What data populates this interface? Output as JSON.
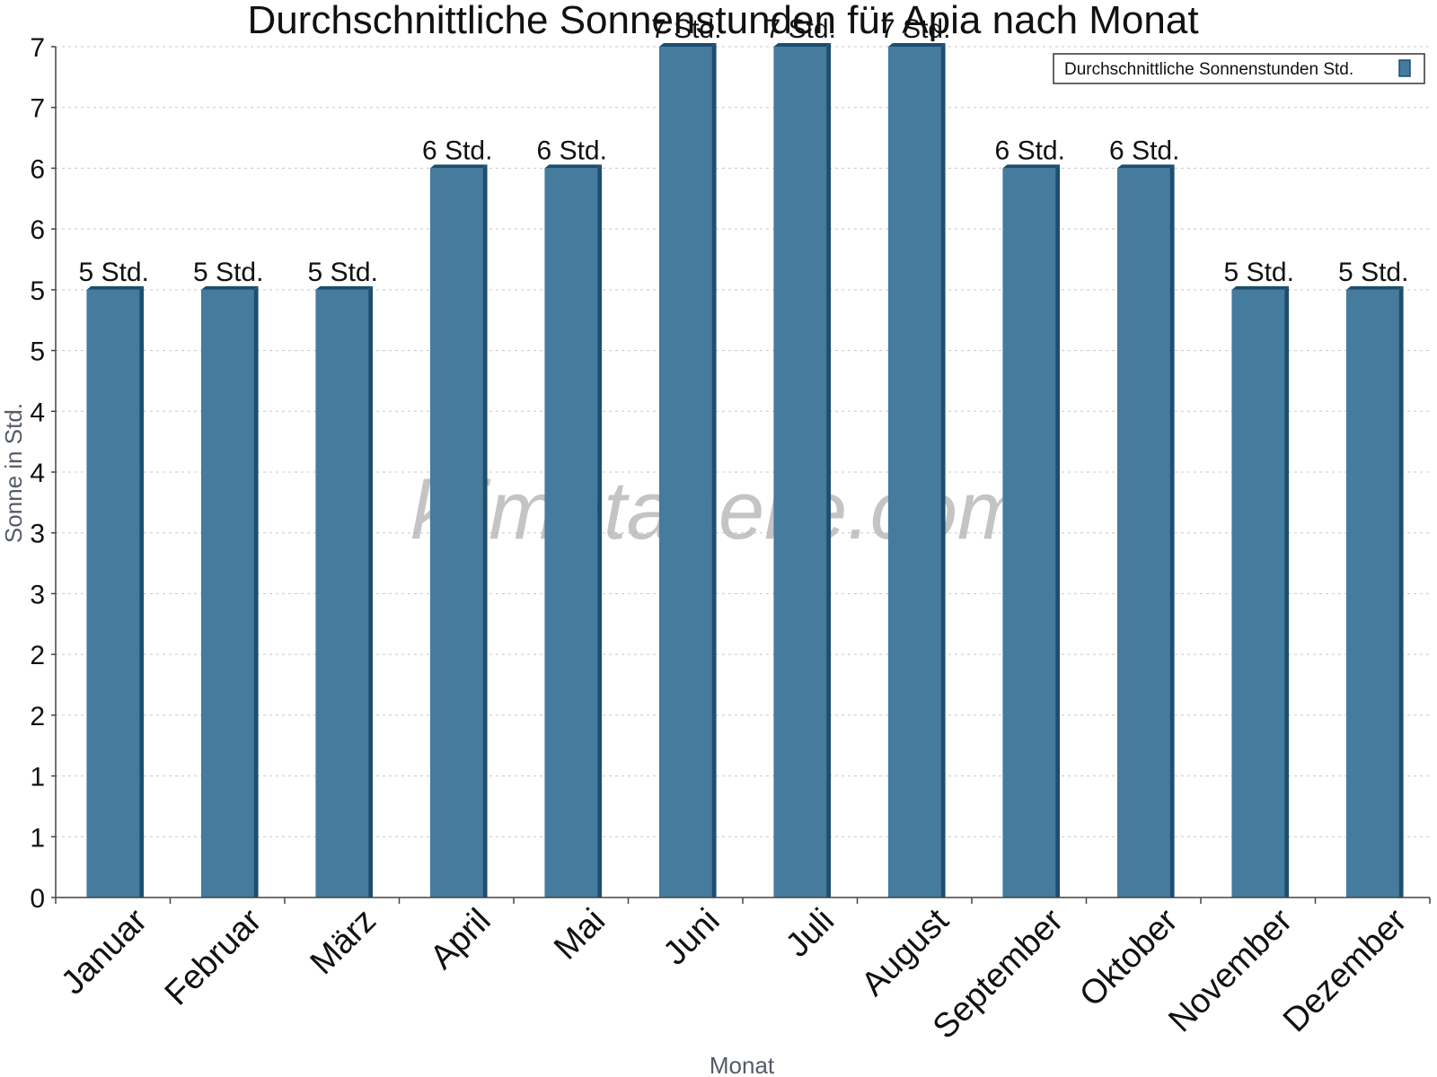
{
  "chart_data": {
    "type": "bar",
    "title": "Durchschnittliche Sonnenstunden für Apia nach Monat",
    "xlabel": "Monat",
    "ylabel": "Sonne in Std.",
    "ylim": [
      0,
      7
    ],
    "y_tick_labels": [
      "0",
      "1",
      "1",
      "2",
      "2",
      "3",
      "3",
      "4",
      "4",
      "5",
      "5",
      "6",
      "6",
      "7",
      "7"
    ],
    "grid": true,
    "legend_position": "top-right",
    "categories": [
      "Januar",
      "Februar",
      "März",
      "April",
      "Mai",
      "Juni",
      "Juli",
      "August",
      "September",
      "Oktober",
      "November",
      "Dezember"
    ],
    "series": [
      {
        "name": "Durchschnittliche Sonnenstunden Std.",
        "values": [
          5,
          5,
          5,
          6,
          6,
          7,
          7,
          7,
          6,
          6,
          5,
          5
        ],
        "labels": [
          "5 Std.",
          "5 Std.",
          "5 Std.",
          "6 Std.",
          "6 Std.",
          "7 Std.",
          "7 Std.",
          "7 Std.",
          "6 Std.",
          "6 Std.",
          "5 Std.",
          "5 Std."
        ],
        "color": "#457b9d",
        "edge_color": "#1d4e6e"
      }
    ],
    "watermark": "klimatabelle.com"
  }
}
